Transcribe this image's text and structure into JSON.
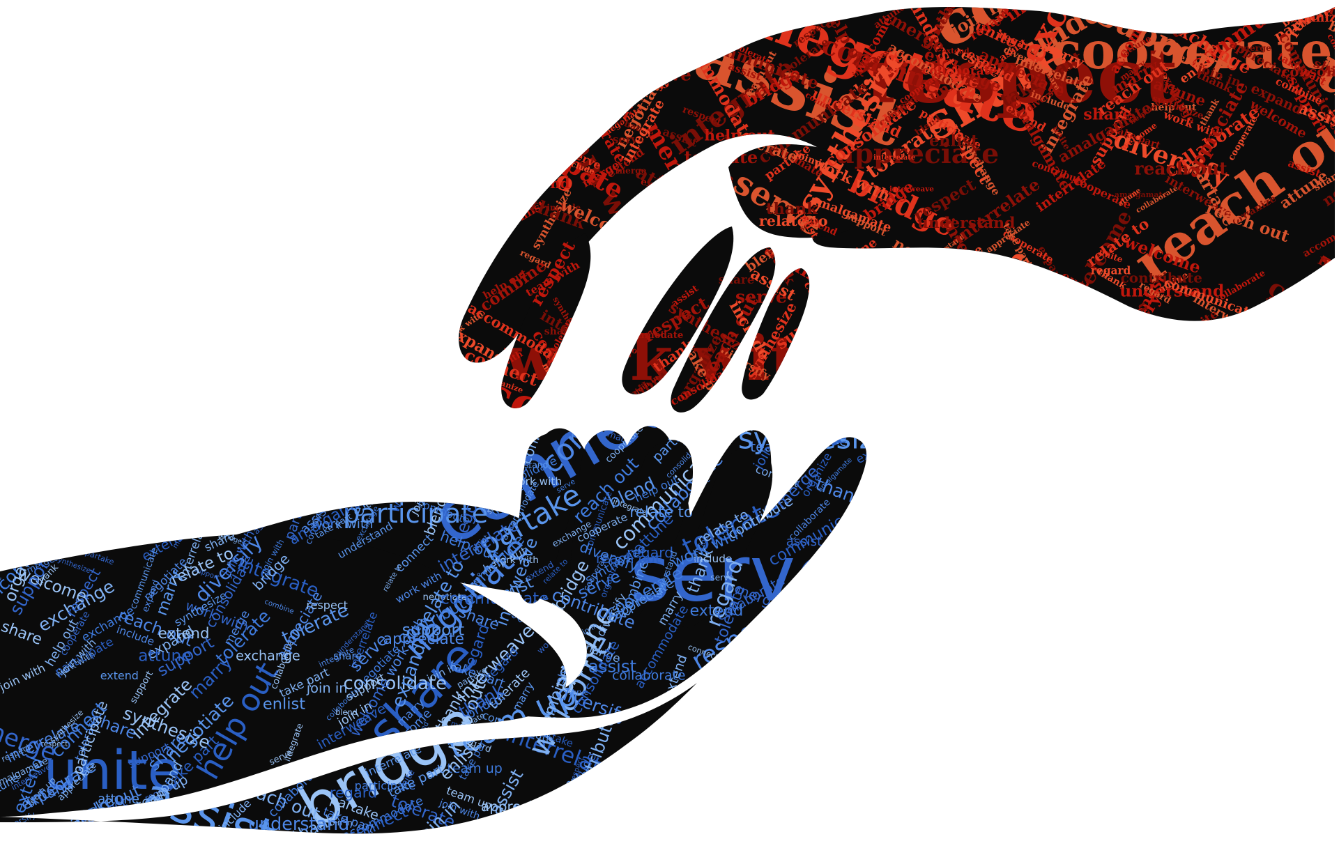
{
  "colors": {
    "background": "#ffffff",
    "hand_fill": "#0b0b0b",
    "red_palette": [
      "#c0170c",
      "#e0321c",
      "#8e1007",
      "#d9542e",
      "#a31309",
      "#ee4a2a",
      "#7a0e06"
    ],
    "blue_palette": [
      "#3f7bde",
      "#5a95ec",
      "#2a5fc4",
      "#7fb0f2",
      "#4d86e6",
      "#9ac3f6",
      "#3366cc"
    ]
  },
  "upper_hand": {
    "name": "red-hand-reaching-down",
    "words": [
      "connect",
      "work with",
      "reach out",
      "cooperate",
      "collaborate",
      "unite",
      "assist",
      "share",
      "negotiate",
      "respect",
      "understand",
      "include",
      "serve",
      "bridge",
      "team with",
      "regard",
      "relate to",
      "interrelate",
      "attune",
      "partake",
      "expand",
      "welcome",
      "communicate",
      "accommodate",
      "participate",
      "merge",
      "contribute",
      "tolerate",
      "diversify",
      "integrate",
      "help out",
      "appreciate",
      "combine",
      "consolidate",
      "synthesize",
      "interweave",
      "marry",
      "organize",
      "support",
      "exchange",
      "blend",
      "enlist",
      "take part",
      "thank",
      "join in",
      "extend",
      "amalgamate"
    ]
  },
  "lower_hand": {
    "name": "blue-hand-reaching-up",
    "words": [
      "reach out",
      "connect",
      "unite",
      "work with",
      "collaborate",
      "bridge",
      "assist",
      "share",
      "cooperate",
      "serve",
      "respect",
      "communicate",
      "interrelate",
      "negotiate",
      "include",
      "expand",
      "welcome",
      "diversify",
      "combine",
      "integrate",
      "regard",
      "relate to",
      "partake",
      "blend",
      "merge",
      "team up",
      "extend",
      "tolerate",
      "help out",
      "attune",
      "support",
      "enlist",
      "contribute",
      "understand",
      "organize",
      "synthesize",
      "participate",
      "accommodate",
      "join in",
      "appreciate",
      "exchange",
      "interweave",
      "marry",
      "thank",
      "take part",
      "consolidate",
      "amalgamate",
      "join with",
      "work with"
    ]
  }
}
